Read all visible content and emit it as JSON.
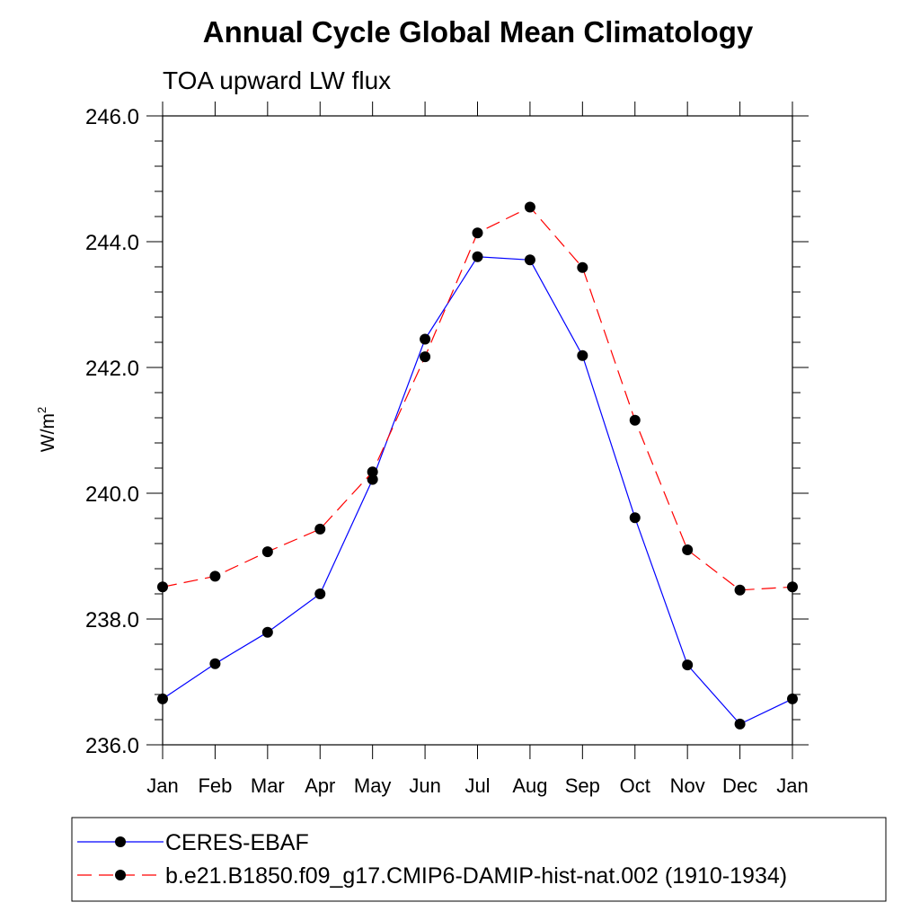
{
  "chart_data": {
    "type": "line",
    "title": "Annual Cycle Global Mean Climatology",
    "subtitle": "TOA upward LW flux",
    "ylabel_base": "W/m",
    "ylabel_sup": "2",
    "xlabel": "",
    "categories": [
      "Jan",
      "Feb",
      "Mar",
      "Apr",
      "May",
      "Jun",
      "Jul",
      "Aug",
      "Sep",
      "Oct",
      "Nov",
      "Dec",
      "Jan"
    ],
    "ylim": [
      236.0,
      246.0
    ],
    "yticks": [
      "236.0",
      "238.0",
      "240.0",
      "242.0",
      "244.0",
      "246.0"
    ],
    "legend_position": "bottom",
    "grid": false,
    "series": [
      {
        "name": "CERES-EBAF",
        "color": "#0000ff",
        "dash": "solid",
        "marker": "filled-circle",
        "values": [
          236.73,
          237.29,
          237.79,
          238.4,
          240.22,
          242.45,
          243.76,
          243.71,
          242.19,
          239.61,
          237.27,
          236.33,
          236.73
        ]
      },
      {
        "name": "b.e21.B1850.f09_g17.CMIP6-DAMIP-hist-nat.002 (1910-1934)",
        "color": "#ff0000",
        "dash": "dashed",
        "marker": "filled-circle",
        "values": [
          238.51,
          238.68,
          239.07,
          239.43,
          240.34,
          242.17,
          244.14,
          244.55,
          243.59,
          241.16,
          239.1,
          238.46,
          238.51
        ]
      }
    ]
  }
}
